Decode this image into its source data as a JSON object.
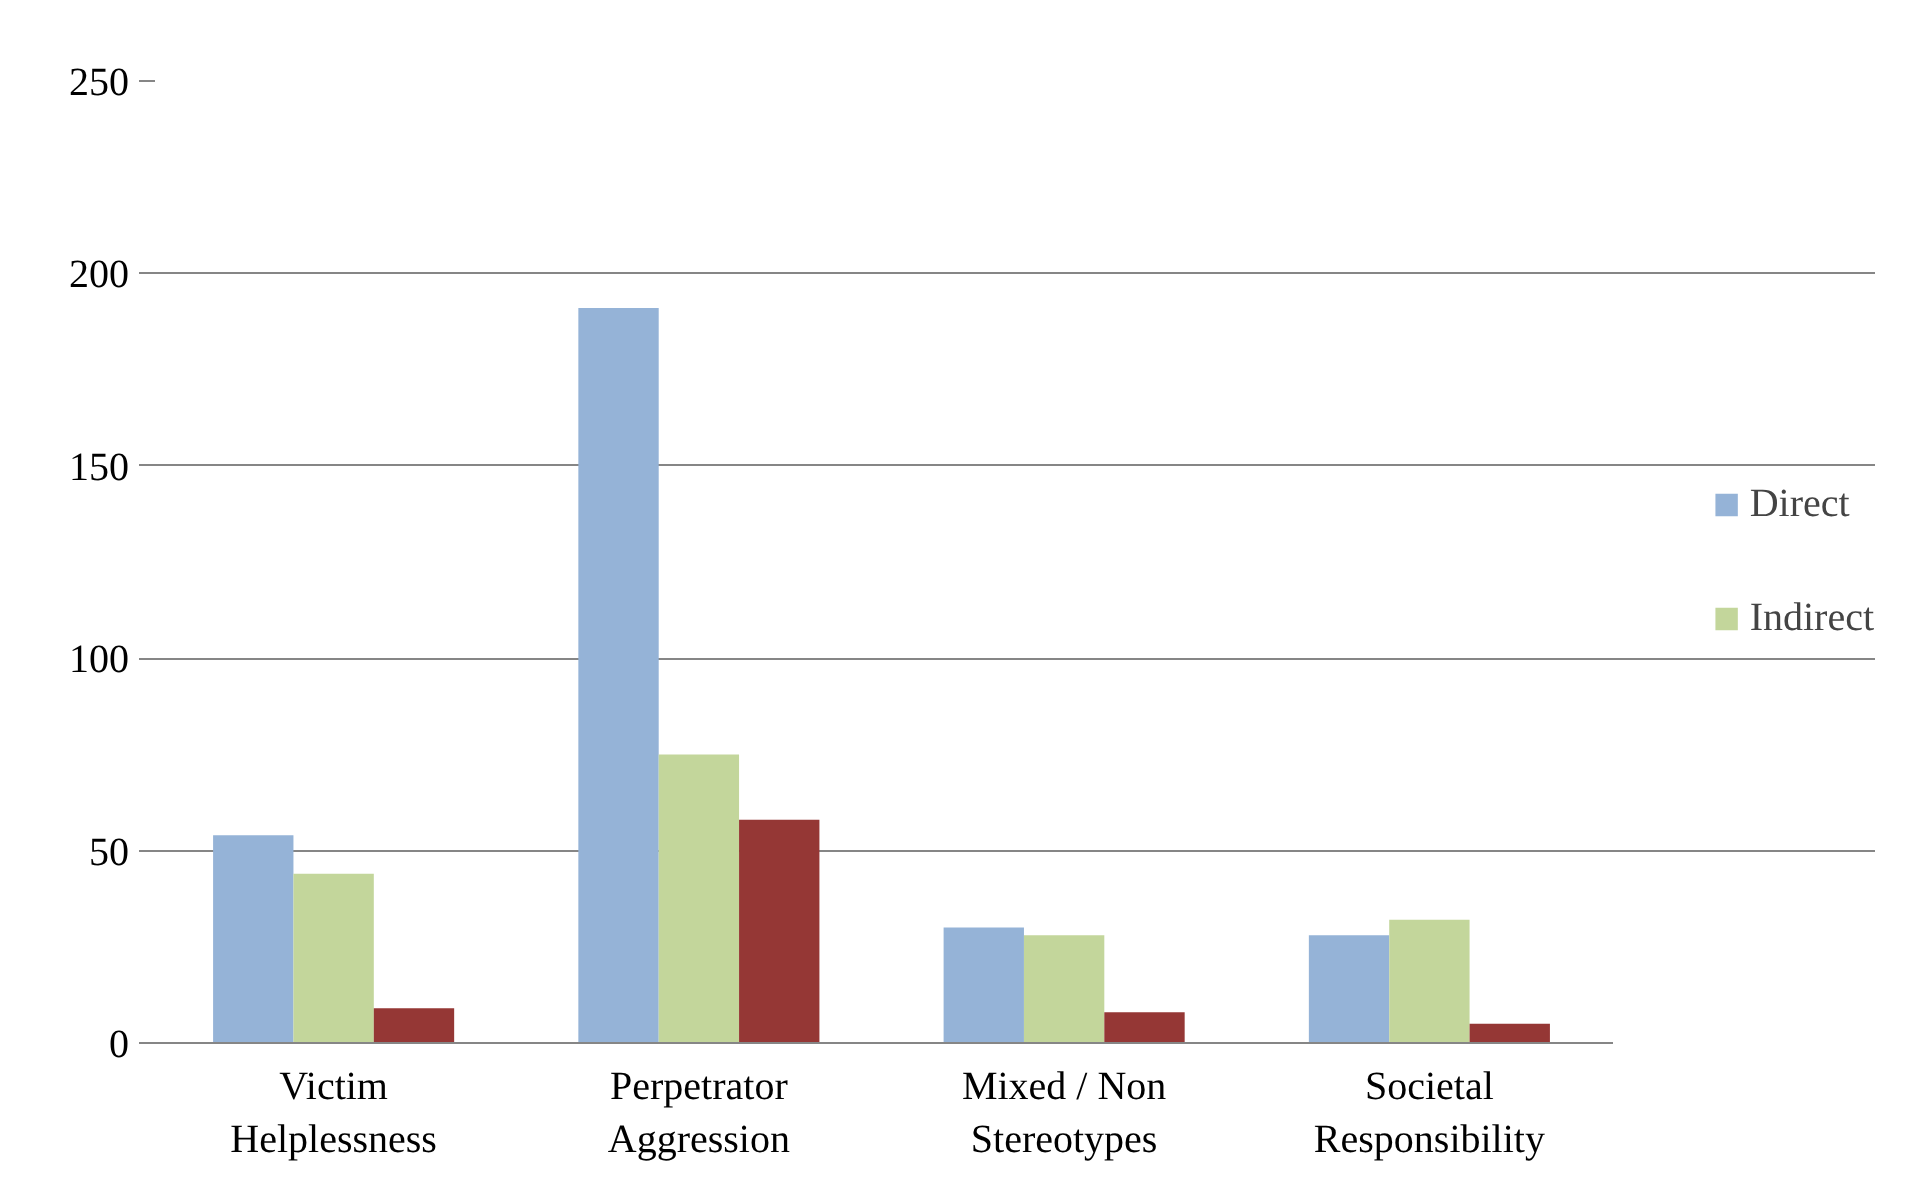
{
  "chart_data": {
    "type": "bar",
    "categories": [
      "Victim Helplessness",
      "Perpetrator Aggression",
      "Mixed / Non Stereotypes",
      "Societal Responsibility"
    ],
    "series": [
      {
        "name": "Direct",
        "color": "#95b3d7",
        "values": [
          54,
          191,
          30,
          28
        ]
      },
      {
        "name": "Indirect",
        "color": "#c3d69b",
        "values": [
          44,
          75,
          28,
          32
        ]
      },
      {
        "color": "#953735",
        "values": [
          9,
          58,
          8,
          5
        ]
      }
    ],
    "ylim": [
      0,
      250
    ],
    "yticks": [
      0,
      50,
      100,
      150,
      200,
      250
    ],
    "grid": "y",
    "legend": "right"
  }
}
